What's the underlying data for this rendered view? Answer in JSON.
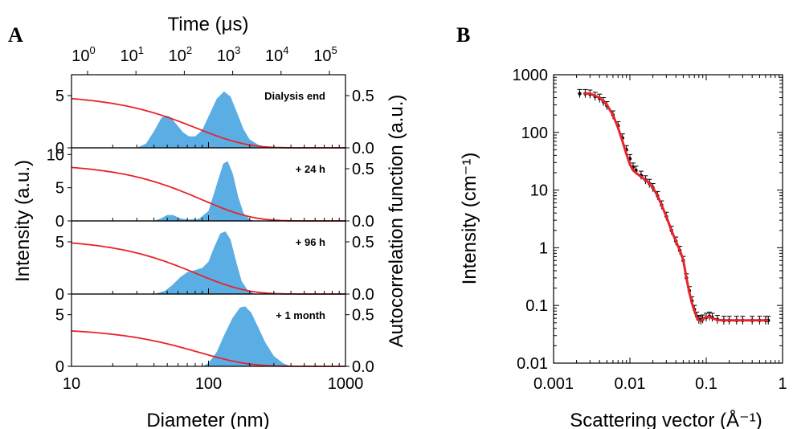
{
  "panel_letters": [
    "A",
    "B"
  ],
  "chart_data": [
    {
      "type": "area",
      "panel": "A",
      "xlabel": "Diameter (nm)",
      "x2label": "Time (μs)",
      "ylabel": "Intensity (a.u.)",
      "y2label": "Autocorrelation function (a.u.)",
      "xscale": "log",
      "xlim": [
        10,
        1000
      ],
      "x_ticks": [
        "10",
        "100",
        "1000"
      ],
      "top_ticks": [
        {
          "base": "10",
          "exp": "0"
        },
        {
          "base": "10",
          "exp": "1"
        },
        {
          "base": "10",
          "exp": "2"
        },
        {
          "base": "10",
          "exp": "3"
        },
        {
          "base": "10",
          "exp": "4"
        },
        {
          "base": "10",
          "exp": "5"
        }
      ],
      "colors": {
        "distribution": "#5aaee3",
        "autocorrelation": "#e8232a"
      },
      "subplots": [
        {
          "label": "Dialysis end",
          "ylim": [
            0,
            7
          ],
          "y_ticks": [
            0,
            5
          ],
          "y2lim": [
            0,
            0.7
          ],
          "y2_ticks": [
            "0.0",
            "0.5"
          ],
          "distribution": [
            {
              "x": 30,
              "y": 0
            },
            {
              "x": 35,
              "y": 0.4
            },
            {
              "x": 40,
              "y": 1.6
            },
            {
              "x": 45,
              "y": 2.8
            },
            {
              "x": 48,
              "y": 3.1
            },
            {
              "x": 52,
              "y": 3.0
            },
            {
              "x": 58,
              "y": 2.3
            },
            {
              "x": 65,
              "y": 1.5
            },
            {
              "x": 72,
              "y": 1.1
            },
            {
              "x": 80,
              "y": 1.1
            },
            {
              "x": 90,
              "y": 1.7
            },
            {
              "x": 100,
              "y": 3.0
            },
            {
              "x": 115,
              "y": 4.7
            },
            {
              "x": 130,
              "y": 5.4
            },
            {
              "x": 145,
              "y": 4.9
            },
            {
              "x": 160,
              "y": 3.5
            },
            {
              "x": 180,
              "y": 1.8
            },
            {
              "x": 200,
              "y": 0.8
            },
            {
              "x": 230,
              "y": 0.3
            },
            {
              "x": 280,
              "y": 0
            }
          ],
          "autocorrelation": {
            "plateau": 0.51,
            "tau_x": 82,
            "beta": 1.2
          }
        },
        {
          "label": "+ 24 h",
          "ylim": [
            0,
            11
          ],
          "y_ticks": [
            0,
            5,
            10
          ],
          "y2lim": [
            0,
            0.7
          ],
          "y2_ticks": [
            "0.0",
            "0.5"
          ],
          "distribution": [
            {
              "x": 40,
              "y": 0
            },
            {
              "x": 45,
              "y": 0.4
            },
            {
              "x": 50,
              "y": 0.9
            },
            {
              "x": 55,
              "y": 0.9
            },
            {
              "x": 62,
              "y": 0.4
            },
            {
              "x": 70,
              "y": 0.2
            },
            {
              "x": 85,
              "y": 0.3
            },
            {
              "x": 100,
              "y": 1.5
            },
            {
              "x": 115,
              "y": 5.5
            },
            {
              "x": 128,
              "y": 8.6
            },
            {
              "x": 138,
              "y": 9.0
            },
            {
              "x": 150,
              "y": 7.2
            },
            {
              "x": 165,
              "y": 3.6
            },
            {
              "x": 180,
              "y": 1.2
            },
            {
              "x": 200,
              "y": 0.2
            },
            {
              "x": 220,
              "y": 0
            }
          ],
          "autocorrelation": {
            "plateau": 0.55,
            "tau_x": 90,
            "beta": 1.2
          }
        },
        {
          "label": "+ 96 h",
          "ylim": [
            0,
            7
          ],
          "y_ticks": [
            0,
            5
          ],
          "y2lim": [
            0,
            0.7
          ],
          "y2_ticks": [
            "0.0",
            "0.5"
          ],
          "distribution": [
            {
              "x": 40,
              "y": 0
            },
            {
              "x": 48,
              "y": 0.3
            },
            {
              "x": 55,
              "y": 0.9
            },
            {
              "x": 62,
              "y": 1.6
            },
            {
              "x": 70,
              "y": 2.1
            },
            {
              "x": 80,
              "y": 2.3
            },
            {
              "x": 90,
              "y": 2.5
            },
            {
              "x": 100,
              "y": 3.1
            },
            {
              "x": 110,
              "y": 4.5
            },
            {
              "x": 122,
              "y": 5.8
            },
            {
              "x": 133,
              "y": 6.0
            },
            {
              "x": 145,
              "y": 5.2
            },
            {
              "x": 160,
              "y": 3.0
            },
            {
              "x": 175,
              "y": 1.2
            },
            {
              "x": 195,
              "y": 0.3
            },
            {
              "x": 220,
              "y": 0
            }
          ],
          "autocorrelation": {
            "plateau": 0.53,
            "tau_x": 82,
            "beta": 1.2
          }
        },
        {
          "label": "+ 1 month",
          "ylim": [
            0,
            7
          ],
          "y_ticks": [
            0,
            5
          ],
          "y2lim": [
            0,
            0.7
          ],
          "y2_ticks": [
            "0.0",
            "0.5"
          ],
          "distribution": [
            {
              "x": 90,
              "y": 0
            },
            {
              "x": 100,
              "y": 0.3
            },
            {
              "x": 115,
              "y": 1.4
            },
            {
              "x": 130,
              "y": 3.0
            },
            {
              "x": 150,
              "y": 4.7
            },
            {
              "x": 170,
              "y": 5.7
            },
            {
              "x": 185,
              "y": 5.8
            },
            {
              "x": 205,
              "y": 5.2
            },
            {
              "x": 230,
              "y": 3.8
            },
            {
              "x": 260,
              "y": 2.3
            },
            {
              "x": 300,
              "y": 1.0
            },
            {
              "x": 350,
              "y": 0.3
            },
            {
              "x": 400,
              "y": 0
            }
          ],
          "autocorrelation": {
            "plateau": 0.37,
            "tau_x": 85,
            "beta": 1.2
          }
        }
      ]
    },
    {
      "type": "scatter",
      "panel": "B",
      "xlabel": "Scattering vector (Å⁻¹)",
      "ylabel": "Intensity (cm⁻¹)",
      "xscale": "log",
      "yscale": "log",
      "xlim": [
        0.001,
        1
      ],
      "ylim": [
        0.01,
        1000
      ],
      "x_ticks": [
        "0.001",
        "0.01",
        "0.1",
        "1"
      ],
      "y_ticks": [
        "0.01",
        "0.1",
        "1",
        "10",
        "100",
        "1000"
      ],
      "colors": {
        "data": "#000000",
        "fit": "#e8232a"
      },
      "data": [
        {
          "x": 0.0022,
          "y": 470
        },
        {
          "x": 0.0026,
          "y": 470
        },
        {
          "x": 0.003,
          "y": 460
        },
        {
          "x": 0.0035,
          "y": 420
        },
        {
          "x": 0.004,
          "y": 390
        },
        {
          "x": 0.0045,
          "y": 340
        },
        {
          "x": 0.005,
          "y": 290
        },
        {
          "x": 0.006,
          "y": 200
        },
        {
          "x": 0.007,
          "y": 130
        },
        {
          "x": 0.008,
          "y": 80
        },
        {
          "x": 0.009,
          "y": 50
        },
        {
          "x": 0.01,
          "y": 35
        },
        {
          "x": 0.011,
          "y": 25
        },
        {
          "x": 0.012,
          "y": 22
        },
        {
          "x": 0.014,
          "y": 18
        },
        {
          "x": 0.016,
          "y": 15
        },
        {
          "x": 0.018,
          "y": 13
        },
        {
          "x": 0.02,
          "y": 11
        },
        {
          "x": 0.023,
          "y": 8
        },
        {
          "x": 0.026,
          "y": 5.5
        },
        {
          "x": 0.03,
          "y": 3.5
        },
        {
          "x": 0.035,
          "y": 2.0
        },
        {
          "x": 0.04,
          "y": 1.3
        },
        {
          "x": 0.045,
          "y": 0.9
        },
        {
          "x": 0.05,
          "y": 0.6
        },
        {
          "x": 0.055,
          "y": 0.3
        },
        {
          "x": 0.06,
          "y": 0.18
        },
        {
          "x": 0.065,
          "y": 0.12
        },
        {
          "x": 0.07,
          "y": 0.085
        },
        {
          "x": 0.075,
          "y": 0.065
        },
        {
          "x": 0.08,
          "y": 0.057
        },
        {
          "x": 0.085,
          "y": 0.055
        },
        {
          "x": 0.09,
          "y": 0.058
        },
        {
          "x": 0.1,
          "y": 0.062
        },
        {
          "x": 0.11,
          "y": 0.065
        },
        {
          "x": 0.12,
          "y": 0.062
        },
        {
          "x": 0.14,
          "y": 0.057
        },
        {
          "x": 0.17,
          "y": 0.055
        },
        {
          "x": 0.2,
          "y": 0.055
        },
        {
          "x": 0.25,
          "y": 0.055
        },
        {
          "x": 0.3,
          "y": 0.055
        },
        {
          "x": 0.4,
          "y": 0.055
        },
        {
          "x": 0.5,
          "y": 0.055
        },
        {
          "x": 0.6,
          "y": 0.055
        },
        {
          "x": 0.65,
          "y": 0.055
        }
      ],
      "fit": [
        {
          "x": 0.0025,
          "y": 475
        },
        {
          "x": 0.003,
          "y": 470
        },
        {
          "x": 0.004,
          "y": 400
        },
        {
          "x": 0.005,
          "y": 300
        },
        {
          "x": 0.006,
          "y": 200
        },
        {
          "x": 0.007,
          "y": 120
        },
        {
          "x": 0.008,
          "y": 70
        },
        {
          "x": 0.009,
          "y": 42
        },
        {
          "x": 0.01,
          "y": 28
        },
        {
          "x": 0.011,
          "y": 22
        },
        {
          "x": 0.012,
          "y": 20
        },
        {
          "x": 0.014,
          "y": 17
        },
        {
          "x": 0.016,
          "y": 15
        },
        {
          "x": 0.018,
          "y": 13
        },
        {
          "x": 0.02,
          "y": 11
        },
        {
          "x": 0.023,
          "y": 8
        },
        {
          "x": 0.026,
          "y": 5.5
        },
        {
          "x": 0.03,
          "y": 3.5
        },
        {
          "x": 0.035,
          "y": 2.0
        },
        {
          "x": 0.04,
          "y": 1.3
        },
        {
          "x": 0.045,
          "y": 0.9
        },
        {
          "x": 0.05,
          "y": 0.62
        },
        {
          "x": 0.055,
          "y": 0.3
        },
        {
          "x": 0.06,
          "y": 0.17
        },
        {
          "x": 0.065,
          "y": 0.11
        },
        {
          "x": 0.07,
          "y": 0.08
        },
        {
          "x": 0.075,
          "y": 0.063
        },
        {
          "x": 0.08,
          "y": 0.055
        },
        {
          "x": 0.085,
          "y": 0.054
        },
        {
          "x": 0.09,
          "y": 0.058
        },
        {
          "x": 0.1,
          "y": 0.063
        },
        {
          "x": 0.11,
          "y": 0.064
        },
        {
          "x": 0.12,
          "y": 0.06
        },
        {
          "x": 0.14,
          "y": 0.056
        },
        {
          "x": 0.17,
          "y": 0.055
        },
        {
          "x": 0.25,
          "y": 0.055
        },
        {
          "x": 0.4,
          "y": 0.055
        },
        {
          "x": 0.65,
          "y": 0.055
        }
      ]
    }
  ]
}
